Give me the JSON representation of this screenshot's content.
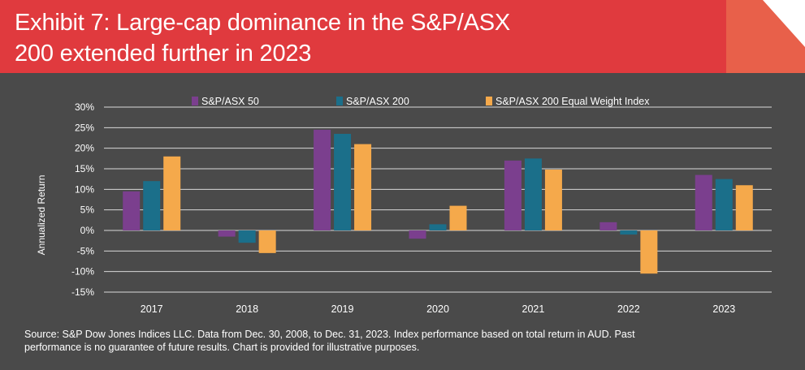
{
  "header": {
    "title_line1": "Exhibit 7: Large-cap dominance in the S&P/ASX",
    "title_line2": "200 extended further in 2023"
  },
  "colors": {
    "header_bg": "#e03a3e",
    "corner_fold": "#e8604a",
    "background": "#4a4a4a"
  },
  "chart_data": {
    "type": "bar",
    "categories": [
      "2017",
      "2018",
      "2019",
      "2020",
      "2021",
      "2022",
      "2023"
    ],
    "series": [
      {
        "name": "S&P/ASX 50",
        "color": "#7b3f8e",
        "values": [
          9.5,
          -1.5,
          24.5,
          -2.0,
          17.0,
          2.0,
          13.5
        ]
      },
      {
        "name": "S&P/ASX 200",
        "color": "#1b6f8a",
        "values": [
          12.0,
          -3.0,
          23.5,
          1.5,
          17.5,
          -1.0,
          12.5
        ]
      },
      {
        "name": "S&P/ASX 200 Equal Weight Index",
        "color": "#f5a94b",
        "values": [
          18.0,
          -5.5,
          21.0,
          6.0,
          14.8,
          -10.5,
          11.0
        ]
      }
    ],
    "ylabel": "Annualized Return",
    "xlabel": "",
    "ylim": [
      -15,
      30
    ],
    "yticks": [
      "30%",
      "25%",
      "20%",
      "15%",
      "10%",
      "5%",
      "0%",
      "-5%",
      "-10%",
      "-15%"
    ],
    "ytick_values": [
      30,
      25,
      20,
      15,
      10,
      5,
      0,
      -5,
      -10,
      -15
    ],
    "grid": true,
    "legend_position": "top"
  },
  "footer": {
    "source_line1": "Source: S&P Dow Jones Indices LLC.  Data from Dec. 30, 2008, to Dec. 31, 2023.  Index performance based on total return in AUD.  Past",
    "source_line2": "performance is no guarantee of future results.  Chart is provided for illustrative purposes."
  }
}
